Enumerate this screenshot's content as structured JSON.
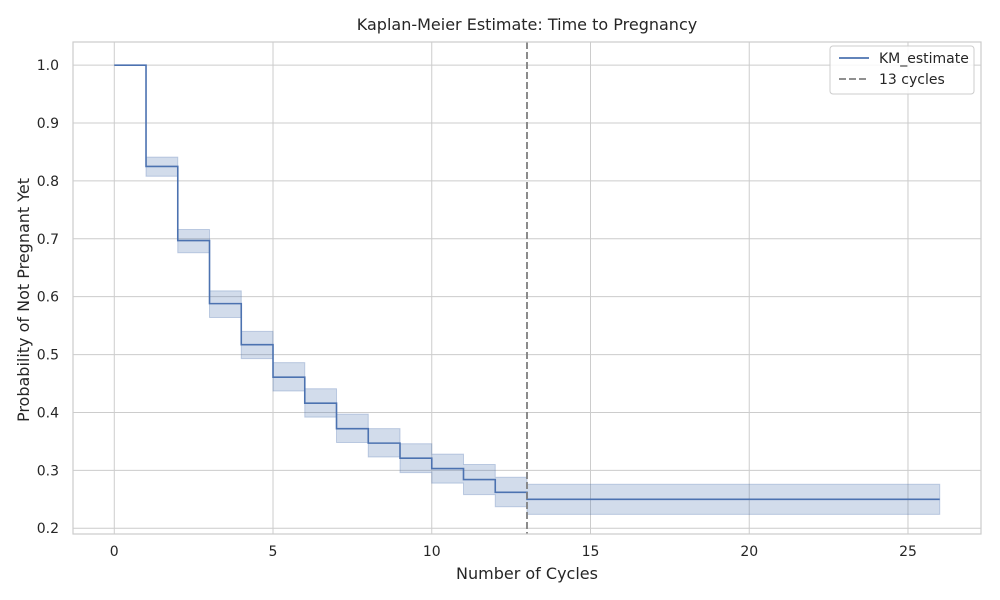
{
  "chart_data": {
    "type": "line",
    "title": "Kaplan-Meier Estimate: Time to Pregnancy",
    "xlabel": "Number of Cycles",
    "ylabel": "Probability of Not Pregnant Yet",
    "xlim": [
      -1.3,
      27.3
    ],
    "ylim": [
      0.19,
      1.04
    ],
    "xticks": [
      0,
      5,
      10,
      15,
      20,
      25
    ],
    "xtick_labels": [
      "0",
      "5",
      "10",
      "15",
      "20",
      "25"
    ],
    "yticks": [
      0.2,
      0.3,
      0.4,
      0.5,
      0.6,
      0.7,
      0.8,
      0.9,
      1.0
    ],
    "ytick_labels": [
      "0.2",
      "0.3",
      "0.4",
      "0.5",
      "0.6",
      "0.7",
      "0.8",
      "0.9",
      "1.0"
    ],
    "grid": true,
    "legend_position": "top-right",
    "series": [
      {
        "name": "KM_estimate",
        "style": "step-post",
        "color": "#4c72b0",
        "x": [
          0,
          1,
          2,
          3,
          4,
          5,
          6,
          7,
          8,
          9,
          10,
          11,
          12,
          13,
          26
        ],
        "y": [
          1.0,
          0.825,
          0.697,
          0.588,
          0.517,
          0.461,
          0.416,
          0.372,
          0.347,
          0.321,
          0.303,
          0.284,
          0.262,
          0.25,
          0.25
        ],
        "ci_lower": [
          1.0,
          0.808,
          0.676,
          0.564,
          0.493,
          0.437,
          0.392,
          0.348,
          0.323,
          0.296,
          0.278,
          0.258,
          0.237,
          0.224,
          0.224
        ],
        "ci_upper": [
          1.0,
          0.841,
          0.716,
          0.61,
          0.54,
          0.486,
          0.441,
          0.397,
          0.372,
          0.346,
          0.328,
          0.31,
          0.288,
          0.276,
          0.276
        ]
      }
    ],
    "reference_lines": [
      {
        "name": "13 cycles",
        "orientation": "vertical",
        "x": 13,
        "style": "dashed",
        "color": "#808080"
      }
    ],
    "colors": {
      "line": "#4c72b0",
      "band": "#4c72b0",
      "reference": "#808080",
      "grid": "#cccccc",
      "frame": "#cccccc"
    }
  }
}
